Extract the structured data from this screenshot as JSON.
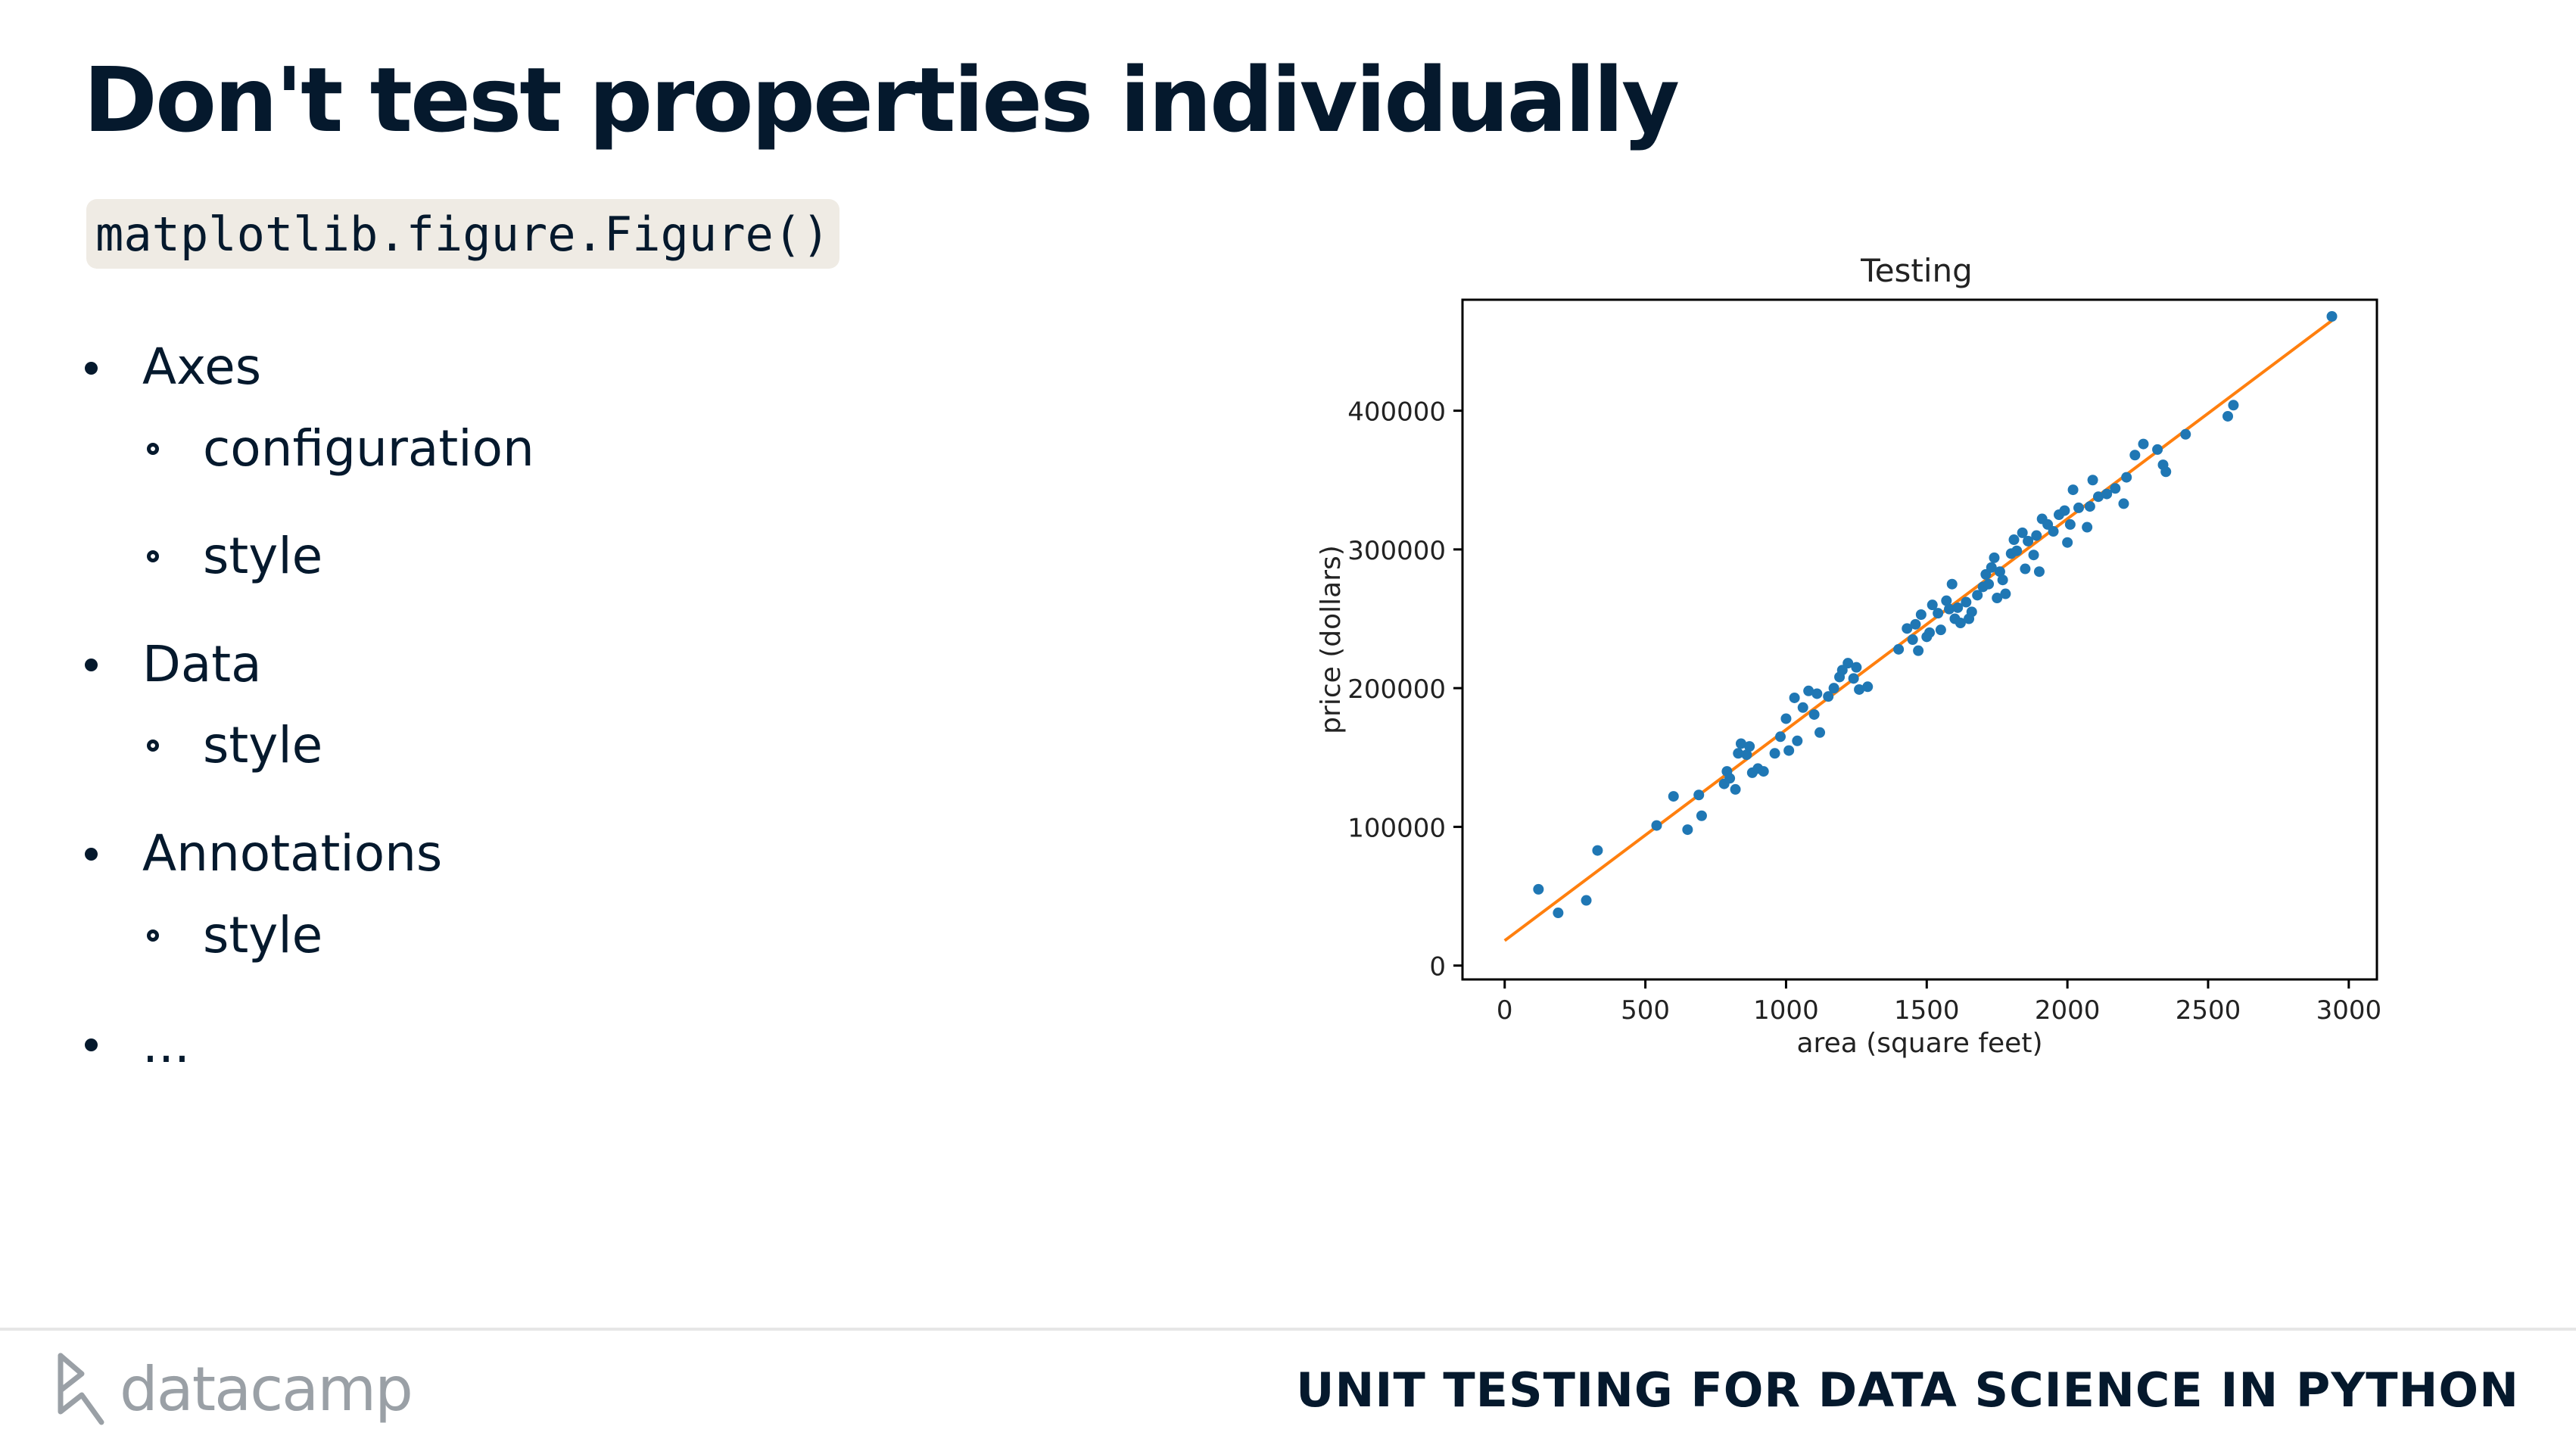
{
  "slide": {
    "title": "Don't test properties individually",
    "code": "matplotlib.figure.Figure()"
  },
  "bullets": [
    {
      "label": "Axes",
      "subitems": [
        "configuration",
        "style"
      ]
    },
    {
      "label": "Data",
      "subitems": [
        "style"
      ]
    },
    {
      "label": "Annotations",
      "subitems": [
        "style"
      ]
    },
    {
      "label": "...",
      "subitems": []
    }
  ],
  "footer": {
    "brand": "datacamp",
    "course": "UNIT TESTING FOR DATA SCIENCE IN PYTHON"
  },
  "colors": {
    "text": "#05192d",
    "points": "#1f77b4",
    "line": "#ff7f0e",
    "code_bg": "#efebe4",
    "logo": "#9aa0a6"
  },
  "chart_data": {
    "type": "scatter",
    "title": "Testing",
    "xlabel": "area (square feet)",
    "ylabel": "price (dollars)",
    "xlim": [
      -150,
      3100
    ],
    "ylim": [
      -10000,
      480000
    ],
    "xticks": [
      0,
      500,
      1000,
      1500,
      2000,
      2500,
      3000
    ],
    "yticks": [
      0,
      100000,
      200000,
      300000,
      400000
    ],
    "grid": false,
    "fit_line": {
      "x": [
        0,
        2940
      ],
      "y": [
        18000,
        465000
      ]
    },
    "points": [
      [
        120,
        55000
      ],
      [
        190,
        38000
      ],
      [
        290,
        47000
      ],
      [
        330,
        83000
      ],
      [
        540,
        101000
      ],
      [
        600,
        122000
      ],
      [
        650,
        98000
      ],
      [
        690,
        123000
      ],
      [
        700,
        108000
      ],
      [
        780,
        131000
      ],
      [
        790,
        140000
      ],
      [
        800,
        135000
      ],
      [
        820,
        127000
      ],
      [
        830,
        153000
      ],
      [
        840,
        160000
      ],
      [
        860,
        152000
      ],
      [
        870,
        158000
      ],
      [
        880,
        139000
      ],
      [
        900,
        142000
      ],
      [
        920,
        140000
      ],
      [
        960,
        153000
      ],
      [
        980,
        165000
      ],
      [
        1000,
        178000
      ],
      [
        1010,
        155000
      ],
      [
        1030,
        193000
      ],
      [
        1040,
        162000
      ],
      [
        1060,
        186000
      ],
      [
        1080,
        198000
      ],
      [
        1100,
        181000
      ],
      [
        1110,
        196000
      ],
      [
        1120,
        168000
      ],
      [
        1150,
        194000
      ],
      [
        1170,
        200000
      ],
      [
        1190,
        208000
      ],
      [
        1200,
        213000
      ],
      [
        1220,
        218000
      ],
      [
        1240,
        207000
      ],
      [
        1250,
        215000
      ],
      [
        1260,
        199000
      ],
      [
        1290,
        201000
      ],
      [
        1400,
        228000
      ],
      [
        1430,
        243000
      ],
      [
        1450,
        235000
      ],
      [
        1460,
        246000
      ],
      [
        1470,
        227000
      ],
      [
        1480,
        253000
      ],
      [
        1500,
        237000
      ],
      [
        1510,
        240000
      ],
      [
        1520,
        260000
      ],
      [
        1540,
        254000
      ],
      [
        1550,
        242000
      ],
      [
        1570,
        263000
      ],
      [
        1580,
        257000
      ],
      [
        1590,
        275000
      ],
      [
        1600,
        250000
      ],
      [
        1610,
        258000
      ],
      [
        1620,
        247000
      ],
      [
        1640,
        262000
      ],
      [
        1650,
        250000
      ],
      [
        1660,
        255000
      ],
      [
        1680,
        267000
      ],
      [
        1700,
        273000
      ],
      [
        1710,
        282000
      ],
      [
        1720,
        275000
      ],
      [
        1730,
        287000
      ],
      [
        1740,
        294000
      ],
      [
        1750,
        265000
      ],
      [
        1760,
        284000
      ],
      [
        1770,
        278000
      ],
      [
        1780,
        268000
      ],
      [
        1800,
        297000
      ],
      [
        1810,
        307000
      ],
      [
        1820,
        299000
      ],
      [
        1840,
        312000
      ],
      [
        1850,
        286000
      ],
      [
        1860,
        306000
      ],
      [
        1880,
        296000
      ],
      [
        1890,
        310000
      ],
      [
        1900,
        284000
      ],
      [
        1910,
        322000
      ],
      [
        1930,
        318000
      ],
      [
        1950,
        313000
      ],
      [
        1970,
        325000
      ],
      [
        1990,
        328000
      ],
      [
        2000,
        305000
      ],
      [
        2010,
        318000
      ],
      [
        2020,
        343000
      ],
      [
        2040,
        330000
      ],
      [
        2070,
        316000
      ],
      [
        2080,
        331000
      ],
      [
        2090,
        350000
      ],
      [
        2110,
        338000
      ],
      [
        2140,
        340000
      ],
      [
        2170,
        344000
      ],
      [
        2200,
        333000
      ],
      [
        2210,
        352000
      ],
      [
        2240,
        368000
      ],
      [
        2270,
        376000
      ],
      [
        2320,
        372000
      ],
      [
        2340,
        361000
      ],
      [
        2350,
        356000
      ],
      [
        2420,
        383000
      ],
      [
        2570,
        396000
      ],
      [
        2590,
        404000
      ],
      [
        2940,
        468000
      ]
    ]
  }
}
